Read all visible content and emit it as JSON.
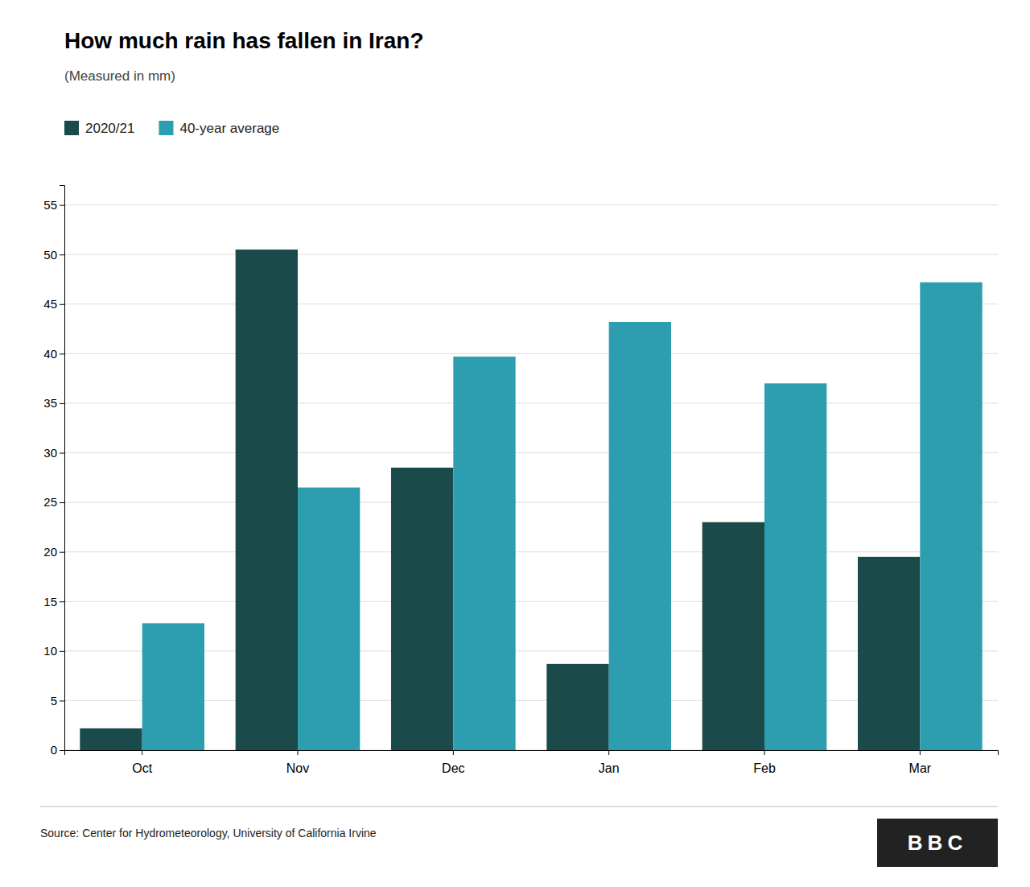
{
  "chart_data": {
    "type": "bar",
    "title": "How much rain has fallen in Iran?",
    "subtitle": "(Measured in mm)",
    "categories": [
      "Oct",
      "Nov",
      "Dec",
      "Jan",
      "Feb",
      "Mar"
    ],
    "series": [
      {
        "name": "2020/21",
        "color": "#1a4a4a",
        "values": [
          2.2,
          50.5,
          28.5,
          8.7,
          23.0,
          19.5
        ]
      },
      {
        "name": "40-year average",
        "color": "#2d9db0",
        "values": [
          12.8,
          26.5,
          39.7,
          43.2,
          37.0,
          47.2
        ]
      }
    ],
    "ylim": [
      0,
      57
    ],
    "yticks": [
      0,
      5,
      10,
      15,
      20,
      25,
      30,
      35,
      40,
      45,
      50,
      55
    ],
    "grid": true,
    "legend": "upper left",
    "annotations": [
      "Source: Center for Hydrometeorology, University of California Irvine",
      "BBC"
    ]
  }
}
